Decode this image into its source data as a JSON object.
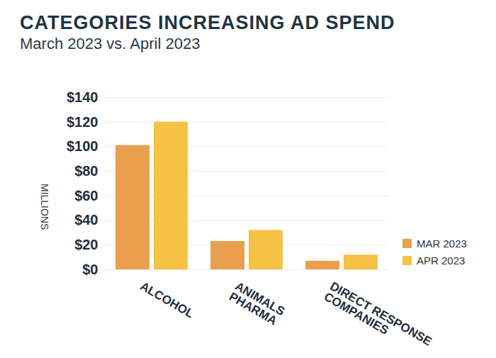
{
  "chart_data": {
    "type": "bar",
    "title": "CATEGORIES INCREASING AD SPEND",
    "subtitle": "March 2023 vs. April 2023",
    "ylabel": "MILLIONS",
    "categories": [
      "ALCOHOL",
      "ANIMALS\nPHARMA",
      "DIRECT RESPONSE\nCOMPANIES"
    ],
    "series": [
      {
        "name": "MAR 2023",
        "color": "#e9a04d",
        "values": [
          101,
          23,
          7
        ]
      },
      {
        "name": "APR 2023",
        "color": "#f6c244",
        "values": [
          120,
          32,
          12
        ]
      }
    ],
    "ylim": [
      0,
      140
    ],
    "yticks": [
      {
        "value": 0,
        "label": "$0"
      },
      {
        "value": 20,
        "label": "$20"
      },
      {
        "value": 40,
        "label": "$40"
      },
      {
        "value": 60,
        "label": "$60"
      },
      {
        "value": 80,
        "label": "$80"
      },
      {
        "value": 100,
        "label": "$100"
      },
      {
        "value": 120,
        "label": "$120"
      },
      {
        "value": 140,
        "label": "$140"
      }
    ],
    "grid": true,
    "legend": "right"
  }
}
